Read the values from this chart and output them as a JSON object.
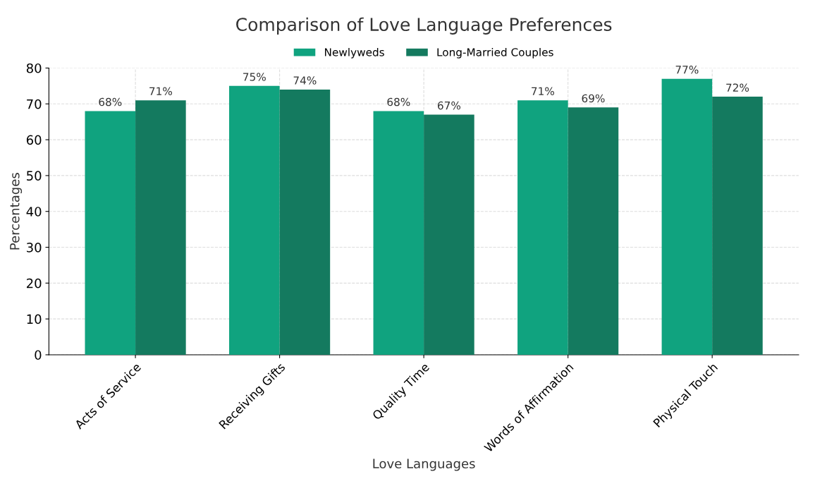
{
  "chart_data": {
    "type": "bar",
    "title": "Comparison of Love Language Preferences",
    "xlabel": "Love Languages",
    "ylabel": "Percentages",
    "categories": [
      "Acts of Service",
      "Receiving Gifts",
      "Quality Time",
      "Words of Affirmation",
      "Physical Touch"
    ],
    "series": [
      {
        "name": "Newlyweds",
        "color": "#10a37f",
        "values": [
          68,
          75,
          68,
          71,
          77
        ],
        "value_labels": [
          "68%",
          "75%",
          "68%",
          "71%",
          "77%"
        ]
      },
      {
        "name": "Long-Married Couples",
        "color": "#147a5f",
        "values": [
          71,
          74,
          67,
          69,
          72
        ],
        "value_labels": [
          "71%",
          "74%",
          "67%",
          "69%",
          "72%"
        ]
      }
    ],
    "ylim": [
      0,
      80
    ],
    "yticks": [
      0,
      10,
      20,
      30,
      40,
      50,
      60,
      70,
      80
    ],
    "grid": true,
    "legend": "top"
  }
}
